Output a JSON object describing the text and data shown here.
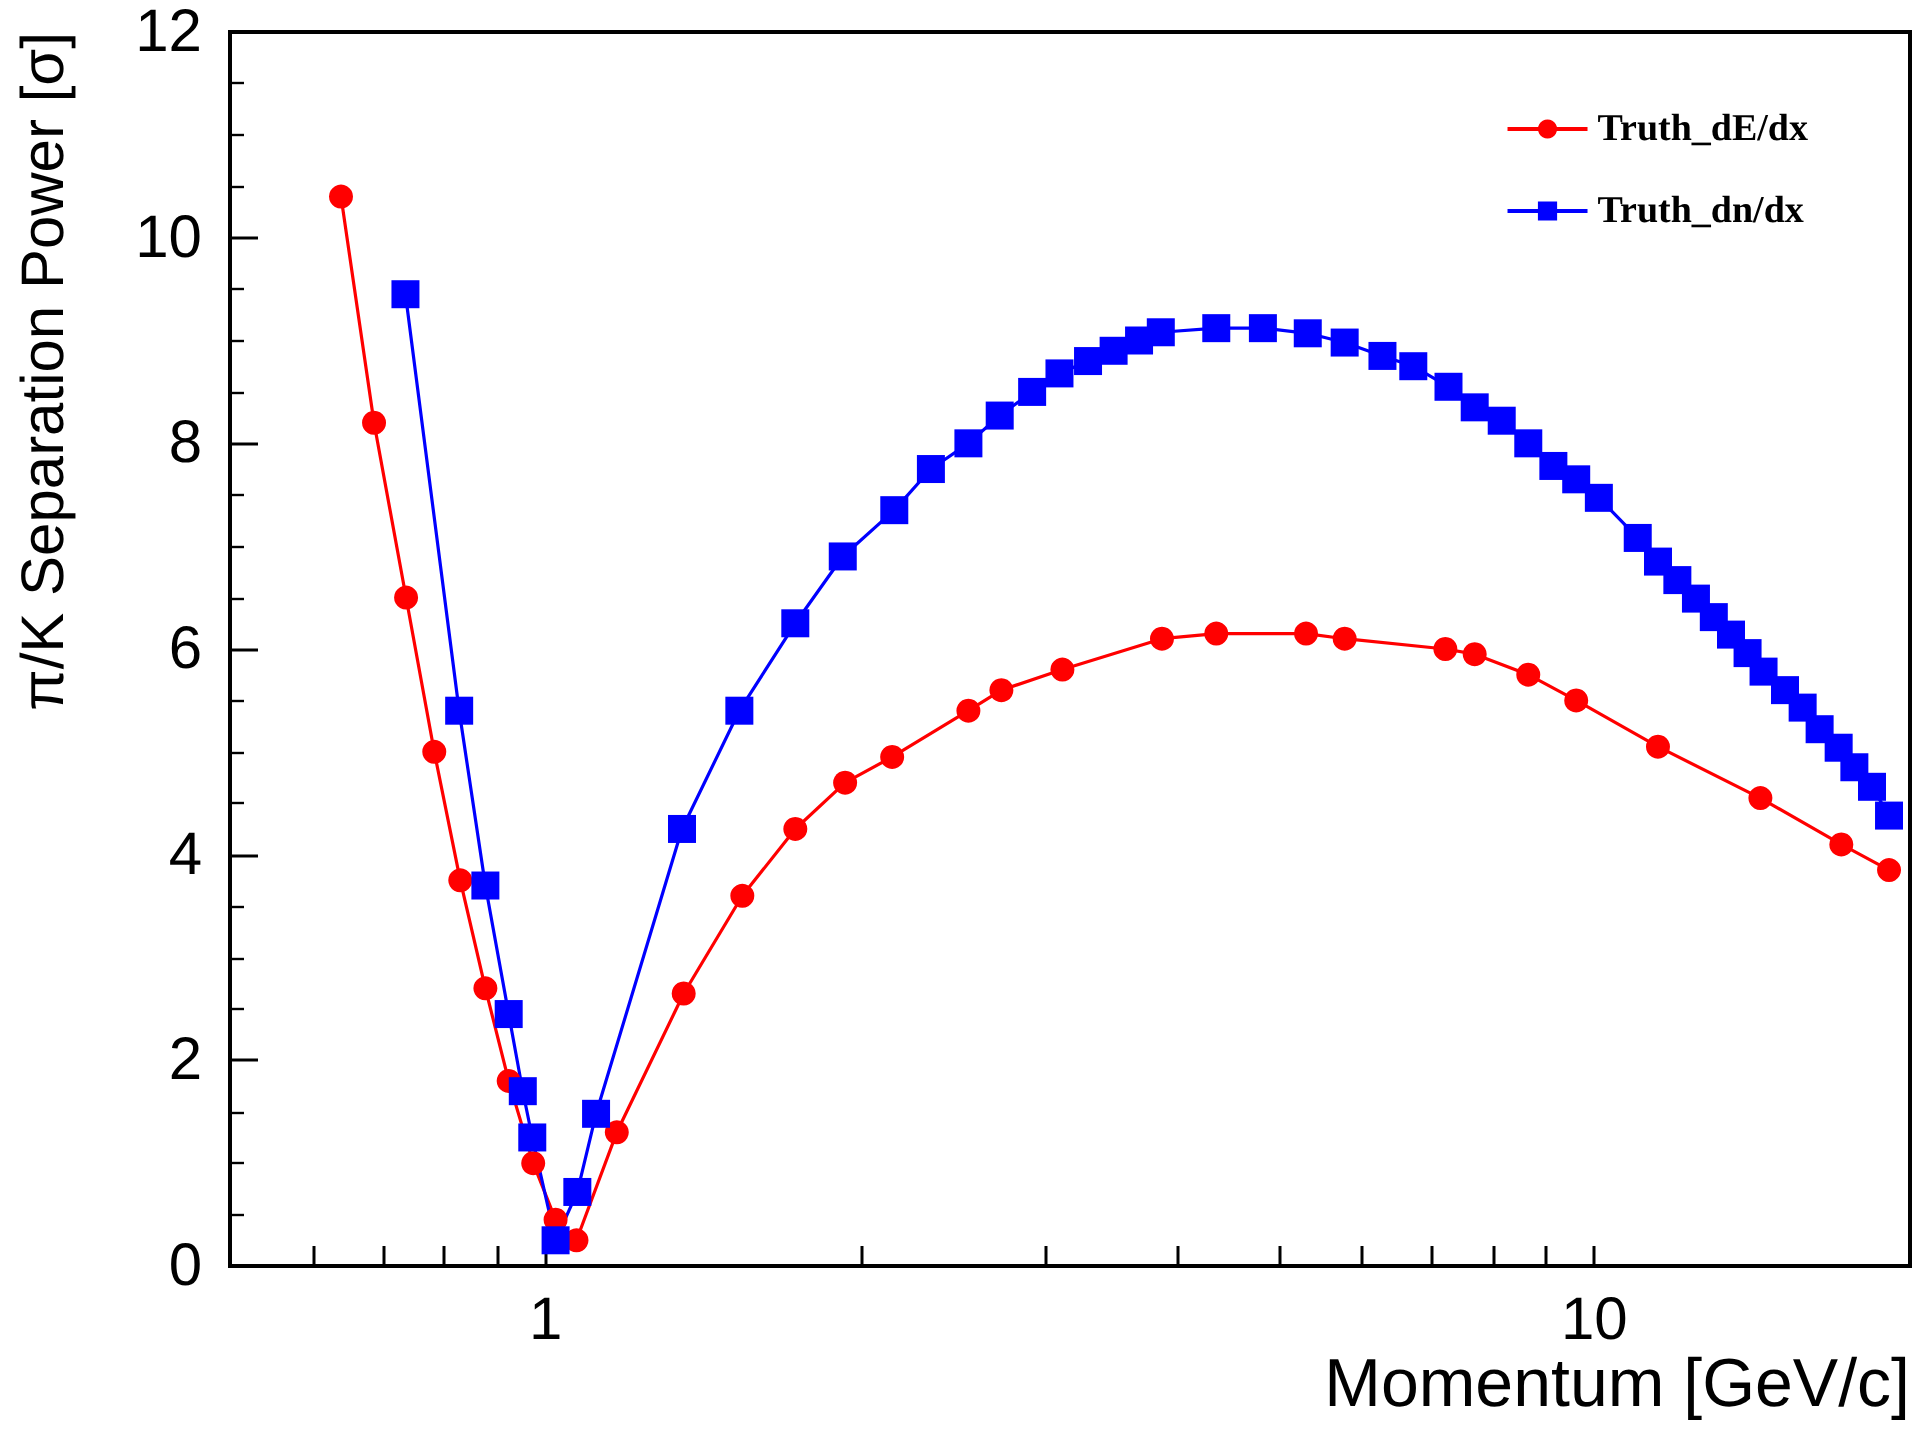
{
  "chart_data": {
    "type": "line",
    "xlabel": "Momentum [GeV/c]",
    "ylabel": "π/K Separation Power [σ]",
    "log": "x",
    "grid": false,
    "legend": "top right",
    "xlim": [
      0.5,
      20
    ],
    "ylim": [
      0,
      12
    ],
    "xticks": [
      {
        "value": 0.6,
        "label": null
      },
      {
        "value": 0.7,
        "label": null
      },
      {
        "value": 0.8,
        "label": null
      },
      {
        "value": 0.9,
        "label": null
      },
      1,
      {
        "value": 2,
        "label": null
      },
      {
        "value": 3,
        "label": null
      },
      {
        "value": 4,
        "label": null
      },
      {
        "value": 5,
        "label": null
      },
      {
        "value": 6,
        "label": null
      },
      {
        "value": 7,
        "label": null
      },
      {
        "value": 8,
        "label": null
      },
      {
        "value": 9,
        "label": null
      },
      10,
      {
        "value": 20,
        "label": null
      }
    ],
    "yticks": [
      0,
      2,
      4,
      6,
      8,
      10,
      12
    ],
    "series": [
      {
        "name": "Truth_dE/dx",
        "color": "#ff0000",
        "marker": "circle",
        "x": [
          0.638,
          0.686,
          0.736,
          0.783,
          0.829,
          0.876,
          0.922,
          0.973,
          1.022,
          1.07,
          1.169,
          1.354,
          1.54,
          1.73,
          1.93,
          2.14,
          2.53,
          2.72,
          3.11,
          3.87,
          4.36,
          5.31,
          5.78,
          7.21,
          7.69,
          8.65,
          9.61,
          11.5,
          14.4,
          17.2,
          19.1
        ],
        "values": [
          10.4,
          8.2,
          6.5,
          5.0,
          3.75,
          2.7,
          1.8,
          1.0,
          0.45,
          0.25,
          1.3,
          2.65,
          3.6,
          4.25,
          4.7,
          4.95,
          5.4,
          5.6,
          5.8,
          6.1,
          6.15,
          6.15,
          6.1,
          6.0,
          5.95,
          5.75,
          5.5,
          5.05,
          4.55,
          4.1,
          3.85
        ]
      },
      {
        "name": "Truth_dn/dx",
        "color": "#0000ff",
        "marker": "square",
        "x": [
          0.735,
          0.827,
          0.876,
          0.922,
          0.951,
          0.971,
          1.022,
          1.072,
          1.117,
          1.349,
          1.53,
          1.73,
          1.92,
          2.15,
          2.33,
          2.53,
          2.71,
          2.91,
          3.09,
          3.29,
          3.48,
          3.68,
          3.86,
          4.36,
          4.83,
          5.33,
          5.78,
          6.28,
          6.72,
          7.26,
          7.69,
          8.16,
          8.65,
          9.14,
          9.61,
          10.1,
          11.0,
          11.5,
          12.0,
          12.5,
          13.0,
          13.5,
          14.0,
          14.5,
          15.2,
          15.8,
          16.4,
          17.1,
          17.7,
          18.4,
          19.1
        ],
        "values": [
          9.45,
          5.4,
          3.7,
          2.45,
          1.7,
          1.25,
          0.25,
          0.72,
          1.48,
          4.25,
          5.4,
          6.25,
          6.9,
          7.35,
          7.75,
          8.0,
          8.27,
          8.5,
          8.68,
          8.8,
          8.9,
          9.0,
          9.08,
          9.12,
          9.12,
          9.07,
          8.98,
          8.85,
          8.75,
          8.55,
          8.35,
          8.22,
          8.0,
          7.78,
          7.65,
          7.47,
          7.08,
          6.85,
          6.67,
          6.49,
          6.31,
          6.14,
          5.96,
          5.78,
          5.6,
          5.43,
          5.22,
          5.04,
          4.85,
          4.66,
          4.38
        ]
      }
    ]
  }
}
